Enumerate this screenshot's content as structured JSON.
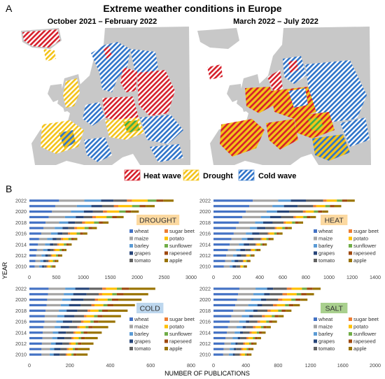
{
  "figure": {
    "panel_a_letter": "A",
    "panel_b_letter": "B",
    "title": "Extreme weather conditions in Europe",
    "map_left_title": "October 2021 – February 2022",
    "map_right_title": "March 2022 – July 2022",
    "weather_legend": [
      {
        "label": "Heat wave",
        "color": "#d6202b"
      },
      {
        "label": "Drought",
        "color": "#f3c31a"
      },
      {
        "label": "Cold wave",
        "color": "#2f74c9"
      }
    ],
    "ylabel": "YEAR",
    "xlabel": "NUMBER OF PUBLICATIONS",
    "crops": [
      "wheat",
      "maize",
      "barley",
      "grapes",
      "tomato",
      "sugar beet",
      "potato",
      "sunflower",
      "rapeseed",
      "apple"
    ],
    "crop_colors": [
      "#4472c4",
      "#a5a5a5",
      "#5b9bd5",
      "#264478",
      "#636363",
      "#ed7d31",
      "#ffc000",
      "#70ad47",
      "#9e480e",
      "#997300"
    ],
    "years": [
      2010,
      2011,
      2012,
      2013,
      2014,
      2015,
      2016,
      2017,
      2018,
      2019,
      2020,
      2021,
      2022
    ],
    "year_tick_labels": [
      "2010",
      "2012",
      "2014",
      "2016",
      "2018",
      "2020",
      "2022"
    ]
  },
  "chart_data": [
    {
      "type": "bar",
      "orientation": "horizontal",
      "stacked": true,
      "title": "DROUGHT",
      "title_bg": "#fcd9a0",
      "xlim": [
        0,
        3000
      ],
      "xticks": [
        "0",
        "500",
        "1000",
        "1500",
        "2000",
        "2500",
        "3000"
      ],
      "series": [
        {
          "name": "wheat",
          "values": [
            100,
            110,
            125,
            140,
            160,
            180,
            220,
            260,
            300,
            360,
            420,
            480,
            550
          ]
        },
        {
          "name": "maize",
          "values": [
            80,
            90,
            100,
            115,
            130,
            150,
            180,
            210,
            250,
            300,
            350,
            400,
            470
          ]
        },
        {
          "name": "barley",
          "values": [
            55,
            60,
            70,
            80,
            90,
            100,
            125,
            145,
            170,
            200,
            240,
            270,
            310
          ]
        },
        {
          "name": "grapes",
          "values": [
            40,
            45,
            50,
            55,
            65,
            75,
            90,
            105,
            125,
            150,
            170,
            200,
            230
          ]
        },
        {
          "name": "tomato",
          "values": [
            45,
            50,
            55,
            62,
            72,
            82,
            100,
            115,
            135,
            160,
            185,
            215,
            250
          ]
        },
        {
          "name": "sugar beet",
          "values": [
            20,
            22,
            25,
            28,
            32,
            36,
            42,
            48,
            55,
            65,
            75,
            85,
            95
          ]
        },
        {
          "name": "potato",
          "values": [
            55,
            60,
            70,
            80,
            90,
            100,
            120,
            140,
            165,
            195,
            225,
            255,
            290
          ]
        },
        {
          "name": "sunflower",
          "values": [
            30,
            33,
            37,
            42,
            48,
            55,
            65,
            75,
            88,
            105,
            120,
            140,
            160
          ]
        },
        {
          "name": "rapeseed",
          "values": [
            25,
            28,
            32,
            36,
            41,
            46,
            55,
            64,
            75,
            88,
            100,
            115,
            130
          ]
        },
        {
          "name": "apple",
          "values": [
            35,
            40,
            45,
            50,
            57,
            65,
            78,
            90,
            105,
            125,
            145,
            165,
            190
          ]
        }
      ]
    },
    {
      "type": "bar",
      "orientation": "horizontal",
      "stacked": true,
      "title": "HEAT",
      "title_bg": "#fcd9a0",
      "xlim": [
        0,
        1400
      ],
      "xticks": [
        "0",
        "200",
        "400",
        "600",
        "800",
        "1000",
        "1200",
        "1400"
      ],
      "series": [
        {
          "name": "wheat",
          "values": [
            90,
            100,
            110,
            125,
            140,
            155,
            175,
            195,
            220,
            250,
            280,
            310,
            340
          ]
        },
        {
          "name": "maize",
          "values": [
            50,
            55,
            60,
            70,
            80,
            90,
            105,
            120,
            140,
            160,
            180,
            200,
            220
          ]
        },
        {
          "name": "barley",
          "values": [
            25,
            28,
            32,
            37,
            42,
            48,
            55,
            62,
            70,
            80,
            90,
            100,
            110
          ]
        },
        {
          "name": "grapes",
          "values": [
            30,
            33,
            37,
            42,
            48,
            55,
            63,
            72,
            82,
            95,
            105,
            118,
            130
          ]
        },
        {
          "name": "tomato",
          "values": [
            35,
            38,
            42,
            48,
            55,
            62,
            72,
            82,
            95,
            108,
            120,
            135,
            150
          ]
        },
        {
          "name": "sugar beet",
          "values": [
            6,
            7,
            8,
            9,
            10,
            12,
            14,
            16,
            18,
            21,
            24,
            27,
            30
          ]
        },
        {
          "name": "potato",
          "values": [
            20,
            22,
            25,
            28,
            32,
            36,
            42,
            48,
            55,
            63,
            70,
            78,
            88
          ]
        },
        {
          "name": "sunflower",
          "values": [
            10,
            11,
            12,
            14,
            16,
            18,
            21,
            24,
            28,
            32,
            36,
            40,
            45
          ]
        },
        {
          "name": "rapeseed",
          "values": [
            10,
            11,
            12,
            14,
            16,
            18,
            21,
            24,
            28,
            32,
            36,
            40,
            45
          ]
        },
        {
          "name": "apple",
          "values": [
            14,
            15,
            17,
            20,
            23,
            26,
            30,
            35,
            40,
            46,
            52,
            58,
            65
          ]
        }
      ]
    },
    {
      "type": "bar",
      "orientation": "horizontal",
      "stacked": true,
      "title": "COLD",
      "title_bg": "#bdd7ee",
      "xlim": [
        0,
        800
      ],
      "xticks": [
        "0",
        "200",
        "400",
        "600",
        "800"
      ],
      "series": [
        {
          "name": "wheat",
          "values": [
            60,
            60,
            62,
            65,
            66,
            70,
            75,
            76,
            80,
            85,
            88,
            92,
            95
          ]
        },
        {
          "name": "maize",
          "values": [
            40,
            42,
            45,
            48,
            50,
            55,
            58,
            62,
            66,
            70,
            74,
            78,
            82
          ]
        },
        {
          "name": "barley",
          "values": [
            20,
            21,
            23,
            25,
            27,
            30,
            33,
            35,
            38,
            41,
            44,
            47,
            50
          ]
        },
        {
          "name": "grapes",
          "values": [
            30,
            32,
            34,
            36,
            38,
            42,
            46,
            50,
            54,
            58,
            62,
            66,
            70
          ]
        },
        {
          "name": "tomato",
          "values": [
            30,
            31,
            33,
            35,
            37,
            40,
            44,
            47,
            50,
            53,
            56,
            60,
            64
          ]
        },
        {
          "name": "sugar beet",
          "values": [
            8,
            8,
            9,
            10,
            10,
            11,
            12,
            13,
            14,
            15,
            16,
            17,
            18
          ]
        },
        {
          "name": "potato",
          "values": [
            20,
            21,
            23,
            25,
            27,
            30,
            34,
            37,
            40,
            44,
            47,
            50,
            54
          ]
        },
        {
          "name": "sunflower",
          "values": [
            10,
            10,
            11,
            12,
            13,
            14,
            16,
            17,
            18,
            20,
            21,
            22,
            24
          ]
        },
        {
          "name": "rapeseed",
          "values": [
            15,
            16,
            17,
            18,
            20,
            22,
            24,
            26,
            28,
            30,
            32,
            34,
            36
          ]
        },
        {
          "name": "apple",
          "values": [
            55,
            57,
            60,
            64,
            70,
            76,
            83,
            90,
            98,
            106,
            115,
            122,
            130
          ]
        }
      ]
    },
    {
      "type": "bar",
      "orientation": "horizontal",
      "stacked": true,
      "title": "SALT",
      "title_bg": "#a9d08e",
      "xlim": [
        0,
        2000
      ],
      "xticks": [
        "0",
        "400",
        "800",
        "1200",
        "1600",
        "2000"
      ],
      "series": [
        {
          "name": "wheat",
          "values": [
            120,
            125,
            135,
            150,
            165,
            180,
            200,
            220,
            245,
            270,
            290,
            305,
            320
          ]
        },
        {
          "name": "maize",
          "values": [
            70,
            75,
            80,
            88,
            96,
            106,
            118,
            130,
            145,
            160,
            175,
            188,
            200
          ]
        },
        {
          "name": "barley",
          "values": [
            50,
            52,
            56,
            62,
            68,
            75,
            83,
            92,
            102,
            113,
            123,
            133,
            143
          ]
        },
        {
          "name": "grapes",
          "values": [
            25,
            27,
            29,
            32,
            35,
            39,
            43,
            48,
            53,
            59,
            65,
            70,
            75
          ]
        },
        {
          "name": "tomato",
          "values": [
            60,
            63,
            68,
            75,
            82,
            90,
            100,
            110,
            122,
            135,
            147,
            158,
            170
          ]
        },
        {
          "name": "sugar beet",
          "values": [
            20,
            21,
            23,
            25,
            28,
            31,
            34,
            38,
            42,
            47,
            52,
            56,
            60
          ]
        },
        {
          "name": "potato",
          "values": [
            45,
            47,
            51,
            56,
            61,
            67,
            74,
            82,
            91,
            101,
            110,
            118,
            127
          ]
        },
        {
          "name": "sunflower",
          "values": [
            20,
            21,
            23,
            25,
            28,
            31,
            34,
            38,
            42,
            47,
            52,
            56,
            60
          ]
        },
        {
          "name": "rapeseed",
          "values": [
            25,
            26,
            28,
            31,
            34,
            37,
            41,
            46,
            51,
            57,
            62,
            67,
            72
          ]
        },
        {
          "name": "apple",
          "values": [
            35,
            37,
            40,
            44,
            48,
            53,
            58,
            64,
            71,
            79,
            86,
            92,
            98
          ]
        }
      ]
    }
  ]
}
